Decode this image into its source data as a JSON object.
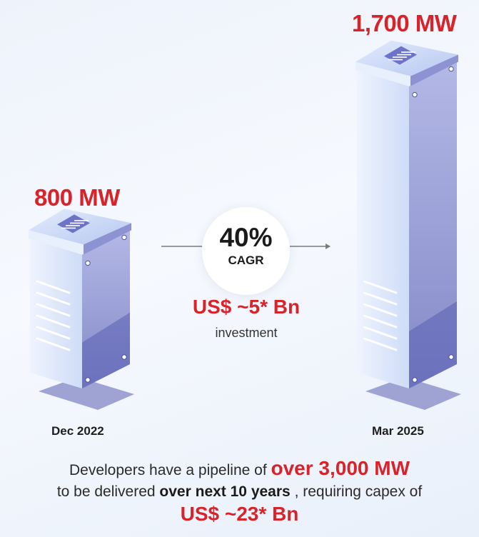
{
  "chart_data": {
    "type": "bar",
    "categories": [
      "Dec 2022",
      "Mar 2025"
    ],
    "values": [
      800,
      1700
    ],
    "unit": "MW",
    "value_labels": [
      "800 MW",
      "1,700 MW"
    ],
    "growth": {
      "value": "40%",
      "label": "CAGR",
      "investment_value": "US$ ~5* Bn",
      "investment_label": "investment"
    },
    "ylim": [
      0,
      1700
    ]
  },
  "footer": {
    "line1_text": "Developers have a pipeline of",
    "line1_highlight": "over 3,000 MW",
    "line2_text_a": "to be delivered",
    "line2_bold": "over next 10 years",
    "line2_text_b": ", requiring capex of",
    "line3_highlight": "US$ ~23* Bn"
  },
  "colors": {
    "accent_red": "#d8232a",
    "server_front": "#dde9fb",
    "server_side": "#8f95cf",
    "server_top": "#c7d6f7",
    "shadow": "#8f94cb"
  }
}
